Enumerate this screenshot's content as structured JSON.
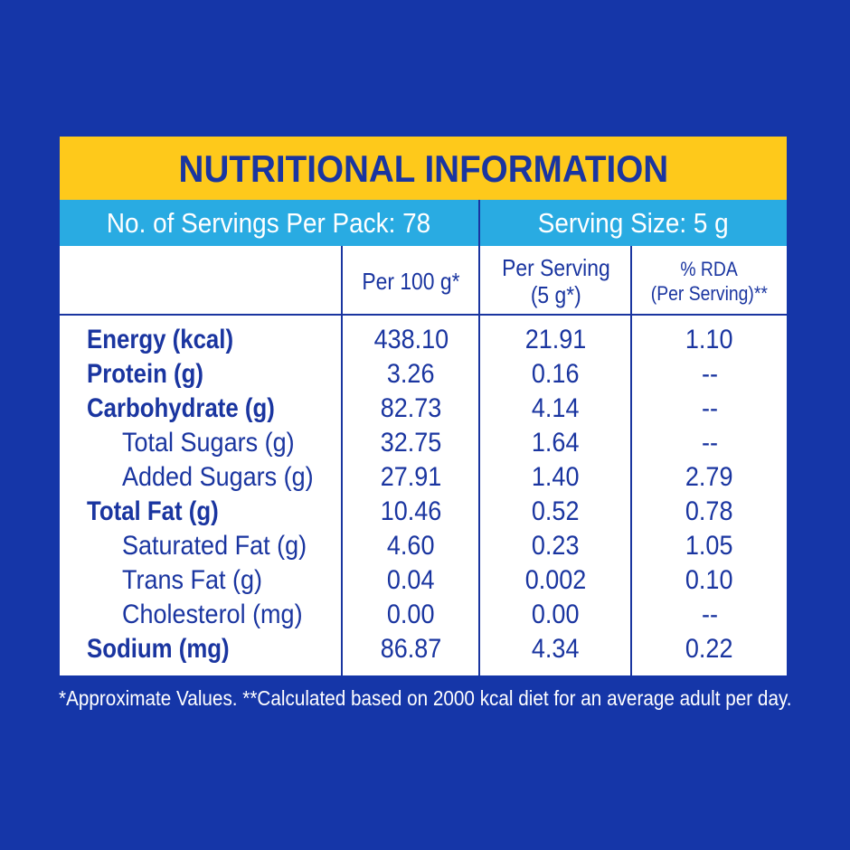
{
  "title": "NUTRITIONAL INFORMATION",
  "servings_per_pack": "No. of Servings Per Pack: 78",
  "serving_size": "Serving Size: 5 g",
  "columns": {
    "per_100g": "Per 100 g*",
    "per_serving_line1": "Per Serving",
    "per_serving_line2": "(5 g*)",
    "rda_line1": "% RDA",
    "rda_line2": "(Per Serving)**"
  },
  "rows": [
    {
      "label": "Energy (kcal)",
      "per_100g": "438.10",
      "per_serving": "21.91",
      "rda": "1.10"
    },
    {
      "label": "Protein (g)",
      "per_100g": "3.26",
      "per_serving": "0.16",
      "rda": "--"
    },
    {
      "label": "Carbohydrate (g)",
      "per_100g": "82.73",
      "per_serving": "4.14",
      "rda": "--"
    },
    {
      "label": "Total Sugars (g)",
      "per_100g": "32.75",
      "per_serving": "1.64",
      "rda": "--"
    },
    {
      "label": "Added Sugars (g)",
      "per_100g": "27.91",
      "per_serving": "1.40",
      "rda": "2.79"
    },
    {
      "label": "Total Fat (g)",
      "per_100g": "10.46",
      "per_serving": "0.52",
      "rda": "0.78"
    },
    {
      "label": "Saturated Fat (g)",
      "per_100g": "4.60",
      "per_serving": "0.23",
      "rda": "1.05"
    },
    {
      "label": "Trans Fat (g)",
      "per_100g": "0.04",
      "per_serving": "0.002",
      "rda": "0.10"
    },
    {
      "label": "Cholesterol (mg)",
      "per_100g": "0.00",
      "per_serving": "0.00",
      "rda": "--"
    },
    {
      "label": "Sodium (mg)",
      "per_100g": "86.87",
      "per_serving": "4.34",
      "rda": "0.22"
    }
  ],
  "footnote": "*Approximate Values. **Calculated based on 2000 kcal diet for an average adult per day.",
  "colors": {
    "background": "#1536a8",
    "title_bar": "#fec91b",
    "serving_bar": "#29abe2",
    "text": "#1a35a0"
  }
}
